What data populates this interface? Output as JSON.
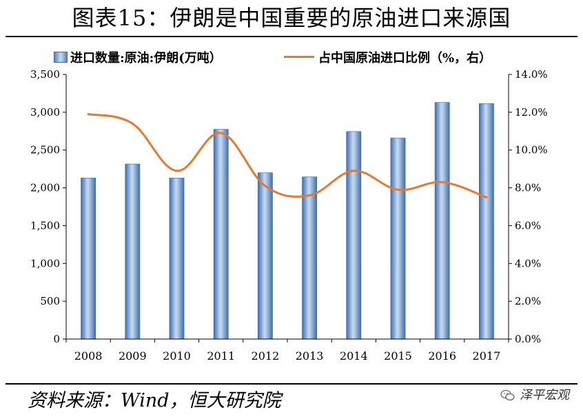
{
  "figure_title": "图表15：伊朗是中国重要的原油进口来源国",
  "source": "资料来源：Wind，恒大研究院",
  "watermark": "泽平宏观",
  "colors": {
    "bar": "#4a7ab8",
    "line": "#e8792c",
    "axis": "#000000"
  },
  "legend": {
    "bar_label": "进口数量:原油:伊朗(万吨）",
    "line_label": "占中国原油进口比例（%，右）"
  },
  "chart_data": {
    "type": "bar+line",
    "categories": [
      "2008",
      "2009",
      "2010",
      "2011",
      "2012",
      "2013",
      "2014",
      "2015",
      "2016",
      "2017"
    ],
    "series": [
      {
        "name": "进口数量:原油:伊朗(万吨）",
        "type": "bar",
        "axis": "left",
        "values": [
          2130,
          2315,
          2130,
          2775,
          2200,
          2145,
          2745,
          2660,
          3130,
          3115
        ]
      },
      {
        "name": "占中国原油进口比例（%，右）",
        "type": "line",
        "axis": "right",
        "values": [
          11.9,
          11.4,
          8.9,
          10.9,
          8.1,
          7.6,
          8.9,
          7.9,
          8.3,
          7.5
        ]
      }
    ],
    "y_left": {
      "min": 0,
      "max": 3500,
      "step": 500,
      "tick_labels": [
        "0",
        "500",
        "1,000",
        "1,500",
        "2,000",
        "2,500",
        "3,000",
        "3,500"
      ]
    },
    "y_right": {
      "min": 0,
      "max": 14,
      "step": 2,
      "tick_labels": [
        "0.0%",
        "2.0%",
        "4.0%",
        "6.0%",
        "8.0%",
        "10.0%",
        "12.0%",
        "14.0%"
      ]
    },
    "grid": false,
    "legend_position": "top"
  }
}
